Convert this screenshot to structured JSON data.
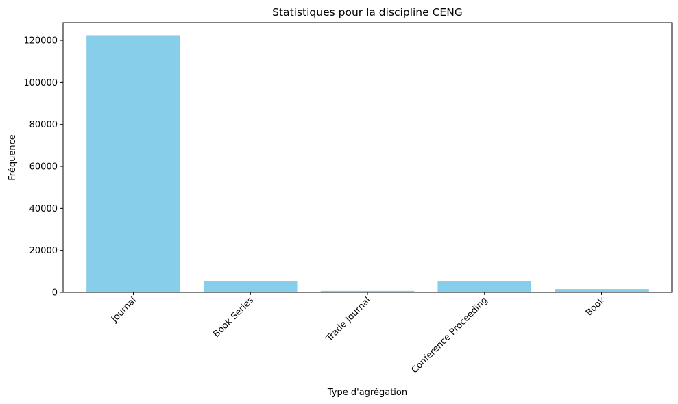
{
  "chart_data": {
    "type": "bar",
    "title": "Statistiques pour la discipline CENG",
    "xlabel": "Type d'agrégation",
    "ylabel": "Fréquence",
    "categories": [
      "Journal",
      "Book Series",
      "Trade Journal",
      "Conference Proceeding",
      "Book"
    ],
    "values": [
      122500,
      5500,
      700,
      5500,
      1600
    ],
    "ylim": [
      0,
      128500
    ],
    "yticks": [
      0,
      20000,
      40000,
      60000,
      80000,
      100000,
      120000
    ],
    "bar_color": "#87CEEB",
    "xtick_rotation": 45,
    "grid": false
  }
}
